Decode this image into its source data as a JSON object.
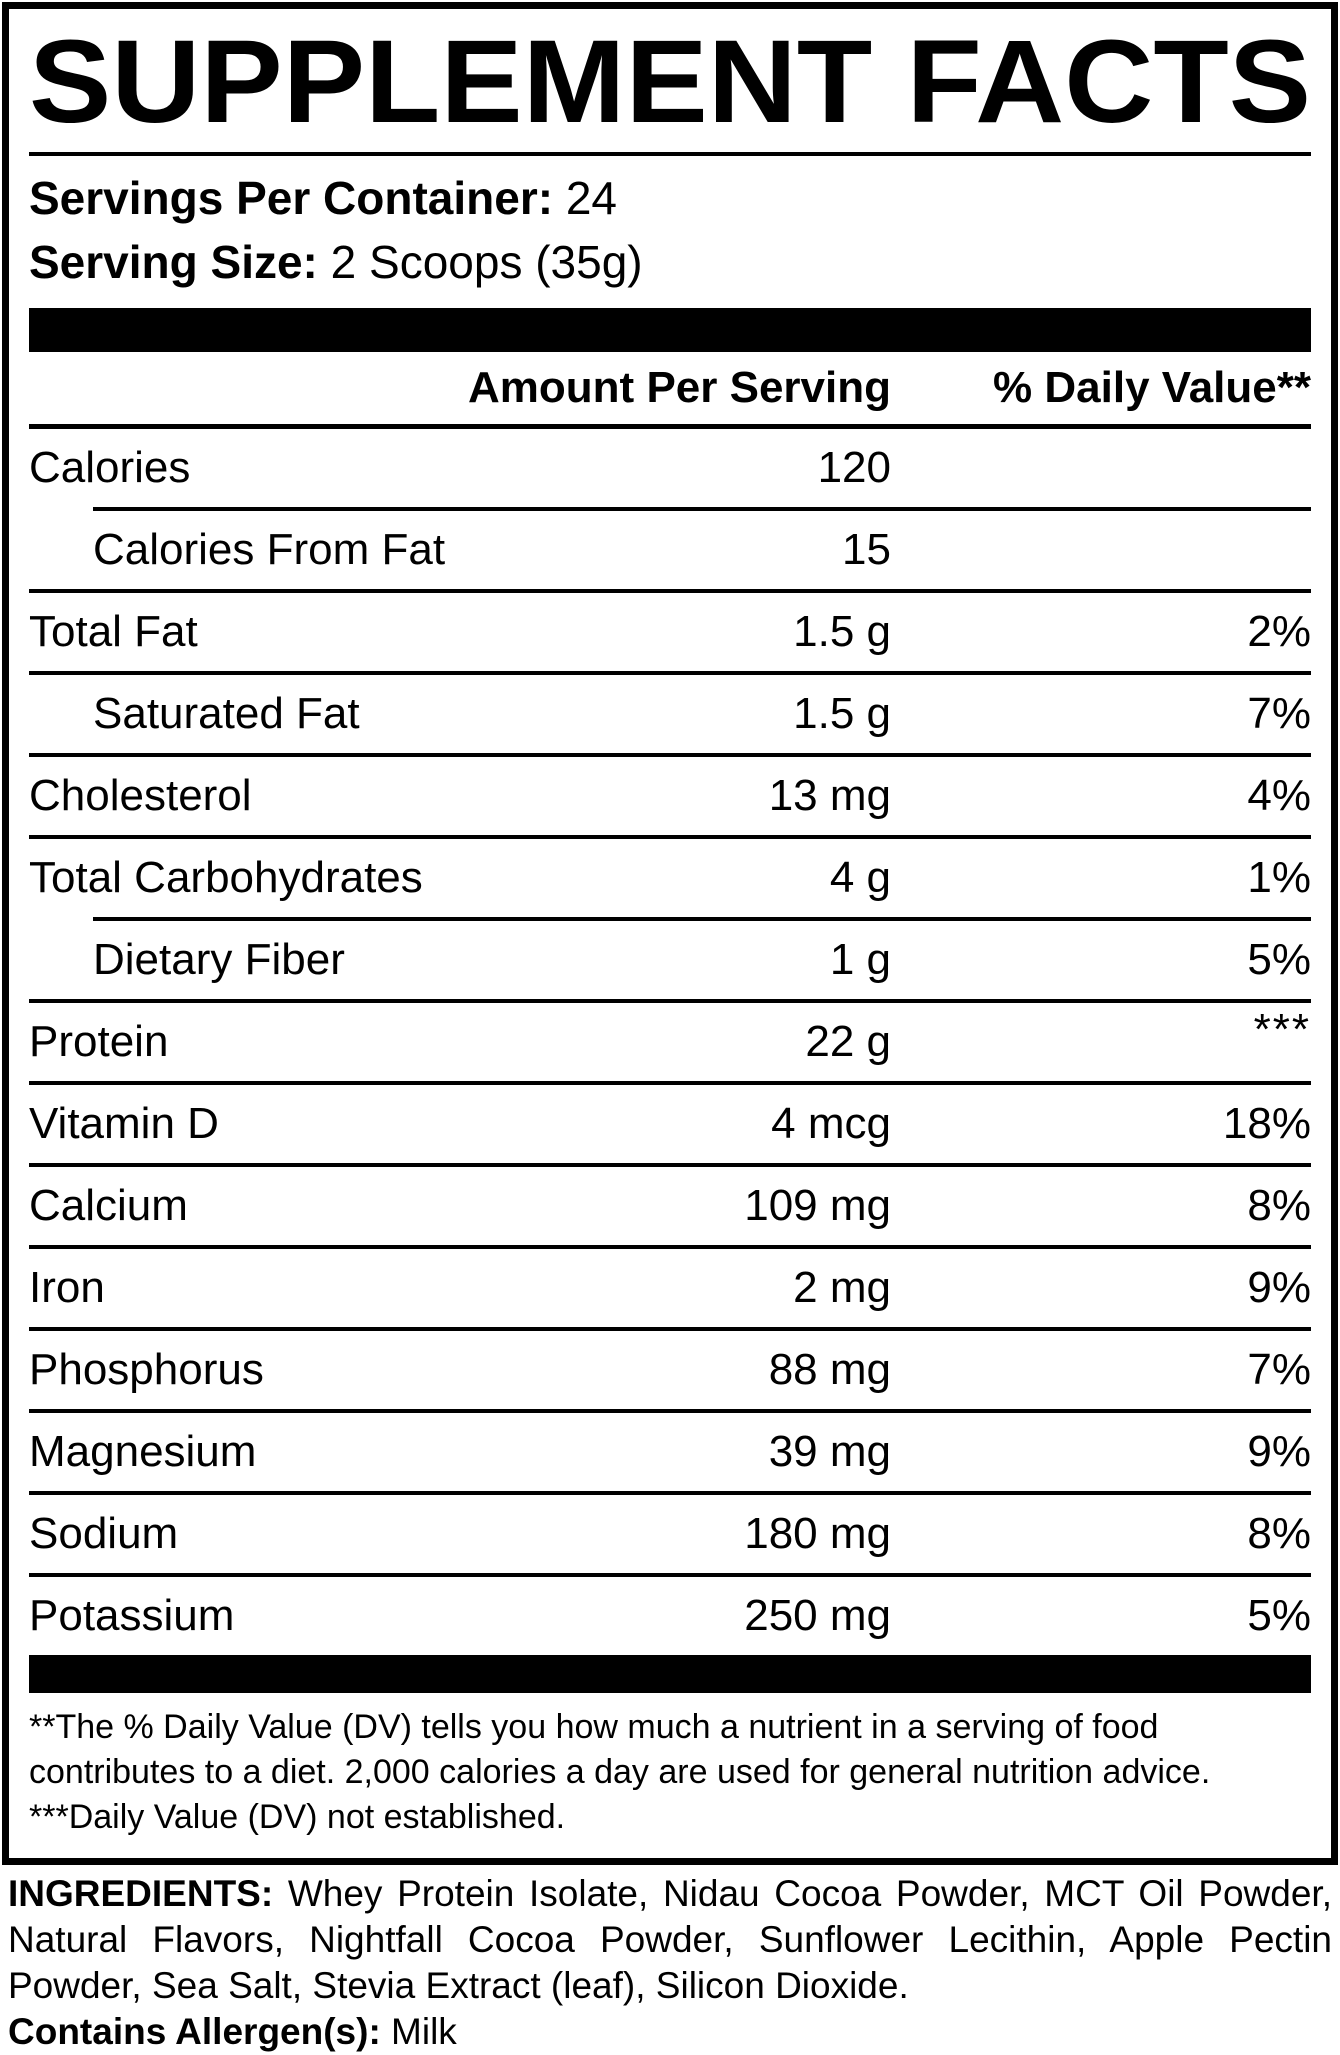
{
  "title": "SUPPLEMENT FACTS",
  "servings": {
    "label": "Servings Per Container:",
    "value": " 24"
  },
  "serving_size": {
    "label": "Serving Size:",
    "value": " 2 Scoops (35g)"
  },
  "header": {
    "amount": "Amount Per Serving",
    "dv": "% Daily Value**"
  },
  "rows": [
    {
      "label": "Calories",
      "amount": "120",
      "dv": ""
    },
    {
      "label": "Calories From Fat",
      "amount": "15",
      "dv": ""
    },
    {
      "label": "Total Fat",
      "amount": "1.5 g",
      "dv": "2%"
    },
    {
      "label": "Saturated Fat",
      "amount": "1.5 g",
      "dv": "7%"
    },
    {
      "label": "Cholesterol",
      "amount": "13 mg",
      "dv": "4%"
    },
    {
      "label": "Total Carbohydrates",
      "amount": "4 g",
      "dv": "1%"
    },
    {
      "label": "Dietary Fiber",
      "amount": "1 g",
      "dv": "5%"
    },
    {
      "label": "Protein",
      "amount": "22 g",
      "dv": "***"
    },
    {
      "label": "Vitamin D",
      "amount": "4 mcg",
      "dv": "18%"
    },
    {
      "label": "Calcium",
      "amount": "109 mg",
      "dv": "8%"
    },
    {
      "label": "Iron",
      "amount": "2 mg",
      "dv": "9%"
    },
    {
      "label": "Phosphorus",
      "amount": "88 mg",
      "dv": "7%"
    },
    {
      "label": "Magnesium",
      "amount": "39 mg",
      "dv": "9%"
    },
    {
      "label": "Sodium",
      "amount": "180 mg",
      "dv": "8%"
    },
    {
      "label": "Potassium",
      "amount": "250 mg",
      "dv": "5%"
    }
  ],
  "footnotes": {
    "daily_value": "**The % Daily Value (DV) tells you how much a nutrient in a serving of food contributes to a diet. 2,000 calories a day are used for general nutrition advice.",
    "not_established": "***Daily Value (DV) not established."
  },
  "ingredients": {
    "label": "INGREDIENTS:",
    "text": " Whey Protein Isolate, Nidau Cocoa Powder, MCT Oil Powder, Natural Flavors, Nightfall Cocoa Powder, Sunflower Lecithin, Apple Pectin Powder, Sea Salt, Stevia Extract (leaf), Silicon Dioxide.",
    "allergen_label": "Contains Allergen(s):",
    "allergen_value": " Milk"
  },
  "colors": {
    "ink": "#000000",
    "paper": "#ffffff"
  }
}
